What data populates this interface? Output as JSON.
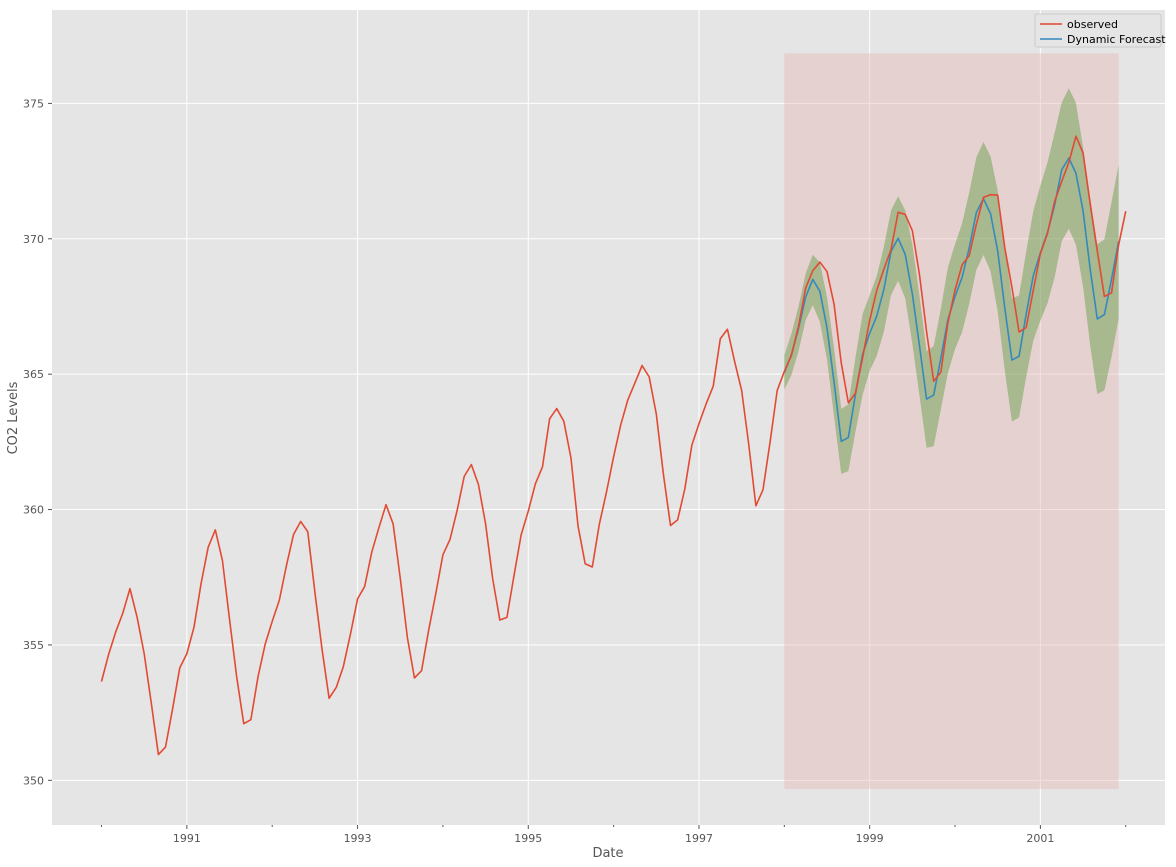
{
  "chart_data": {
    "type": "line",
    "xlabel": "Date",
    "ylabel": "CO2 Levels",
    "xlim": [
      1989.42,
      2002.46
    ],
    "ylim": [
      348.35,
      378.45
    ],
    "x_ticks": [
      1991,
      1993,
      1995,
      1997,
      1999,
      2001
    ],
    "y_ticks": [
      350,
      355,
      360,
      365,
      370,
      375
    ],
    "grid": true,
    "legend_position": "top-right",
    "start": "1990-01",
    "frequency": "monthly",
    "series": [
      {
        "name": "observed",
        "color": "#E24A33",
        "values": [
          353.65,
          354.65,
          355.48,
          356.18,
          357.08,
          356.03,
          354.68,
          352.85,
          350.95,
          351.23,
          352.65,
          354.15,
          354.68,
          355.65,
          357.27,
          358.61,
          359.25,
          358.12,
          355.95,
          353.83,
          352.09,
          352.24,
          353.82,
          355.02,
          355.87,
          356.65,
          357.93,
          359.08,
          359.56,
          359.18,
          356.95,
          354.85,
          353.03,
          353.43,
          354.2,
          355.4,
          356.7,
          357.16,
          358.43,
          359.33,
          360.18,
          359.47,
          357.47,
          355.28,
          353.78,
          354.05,
          355.55,
          356.9,
          358.33,
          358.9,
          359.97,
          361.23,
          361.66,
          360.92,
          359.47,
          357.44,
          355.92,
          356.02,
          357.57,
          359.07,
          359.94,
          360.95,
          361.58,
          363.35,
          363.73,
          363.26,
          361.91,
          359.39,
          358.0,
          357.88,
          359.47,
          360.65,
          361.95,
          363.13,
          364.05,
          364.68,
          365.32,
          364.9,
          363.53,
          361.3,
          359.41,
          359.62,
          360.75,
          362.38,
          363.17,
          363.9,
          364.55,
          366.31,
          366.66,
          365.48,
          364.4,
          362.4,
          360.14,
          360.73,
          362.5,
          364.4,
          365.1,
          365.7,
          366.77,
          368.18,
          368.82,
          369.14,
          368.79,
          367.57,
          365.42,
          363.94,
          364.3,
          365.6,
          366.99,
          368.1,
          368.88,
          369.6,
          370.98,
          370.9,
          370.3,
          368.68,
          366.57,
          364.74,
          365.07,
          366.9,
          368.11,
          369.04,
          369.38,
          370.54,
          371.53,
          371.63,
          371.61,
          369.66,
          368.21,
          366.56,
          366.72,
          368.1,
          369.45,
          370.2,
          371.38,
          372.12,
          372.82,
          373.79,
          373.17,
          371.29,
          369.55,
          367.87,
          368.0,
          369.77,
          371.02
        ]
      },
      {
        "name": "Dynamic Forecast",
        "color": "#348ABD",
        "start": "1998-01",
        "values": [
          365.06,
          365.72,
          366.69,
          367.85,
          368.5,
          368.06,
          366.71,
          364.69,
          362.52,
          362.66,
          364.26,
          365.73,
          366.51,
          367.15,
          368.14,
          369.53,
          370.02,
          369.42,
          367.96,
          366.05,
          364.08,
          364.23,
          365.58,
          367.02,
          367.87,
          368.58,
          369.67,
          370.97,
          371.48,
          370.92,
          369.55,
          367.43,
          365.52,
          365.66,
          367.21,
          368.64,
          369.48,
          370.23,
          371.24,
          372.55,
          372.98,
          372.42,
          371.03,
          368.88,
          367.04,
          367.2,
          368.5,
          369.9
        ],
        "ci_color": "#348A13",
        "ci_lower": [
          364.43,
          364.97,
          365.85,
          366.99,
          367.55,
          366.93,
          365.54,
          363.42,
          361.32,
          361.42,
          362.87,
          364.23,
          365.12,
          365.68,
          366.57,
          367.92,
          368.45,
          367.8,
          366.12,
          364.21,
          362.28,
          362.34,
          363.69,
          365.04,
          365.93,
          366.56,
          367.6,
          368.85,
          369.4,
          368.79,
          367.31,
          365.12,
          363.25,
          363.4,
          364.89,
          366.24,
          366.98,
          367.62,
          368.58,
          369.91,
          370.37,
          369.78,
          368.23,
          366.07,
          364.27,
          364.4,
          365.64,
          367.04
        ],
        "ci_upper": [
          365.7,
          366.5,
          367.51,
          368.72,
          369.41,
          369.13,
          367.85,
          365.94,
          363.72,
          363.88,
          365.62,
          367.22,
          367.92,
          368.63,
          369.71,
          371.05,
          371.57,
          371.05,
          369.8,
          367.89,
          365.85,
          366.04,
          367.41,
          368.95,
          369.8,
          370.57,
          371.72,
          373.01,
          373.58,
          373.04,
          371.78,
          369.73,
          367.79,
          367.91,
          369.52,
          371.02,
          371.97,
          372.82,
          373.91,
          375.03,
          375.56,
          375.02,
          373.37,
          371.52,
          369.8,
          369.98,
          371.35,
          372.74
        ]
      }
    ],
    "highlight": {
      "color": "#E8B4B4",
      "x_start": "1998-01",
      "x_end": "2001-12",
      "y_range": [
        349.68,
        376.85
      ]
    }
  }
}
